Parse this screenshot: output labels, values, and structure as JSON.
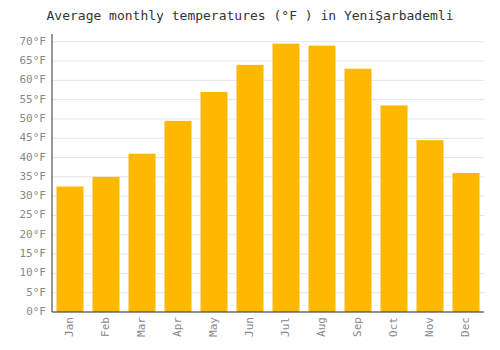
{
  "chart_data": {
    "type": "bar",
    "title": "Average monthly temperatures (°F ) in YeniŞarbademli",
    "categories": [
      "Jan",
      "Feb",
      "Mar",
      "Apr",
      "May",
      "Jun",
      "Jul",
      "Aug",
      "Sep",
      "Oct",
      "Nov",
      "Dec"
    ],
    "values": [
      32.5,
      35.0,
      41.0,
      49.5,
      57.0,
      64.0,
      69.5,
      69.0,
      63.0,
      53.5,
      44.5,
      36.0
    ],
    "color": "#FFB800",
    "ylim": [
      0,
      72
    ],
    "yticks": [
      {
        "value": 0,
        "label": "0°F"
      },
      {
        "value": 5,
        "label": "5°F"
      },
      {
        "value": 10,
        "label": "10°F"
      },
      {
        "value": 15,
        "label": "15°F"
      },
      {
        "value": 20,
        "label": "20°F"
      },
      {
        "value": 25,
        "label": "25°F"
      },
      {
        "value": 30,
        "label": "30°F"
      },
      {
        "value": 35,
        "label": "35°F"
      },
      {
        "value": 40,
        "label": "40°F"
      },
      {
        "value": 45,
        "label": "45°F"
      },
      {
        "value": 50,
        "label": "50°F"
      },
      {
        "value": 55,
        "label": "55°F"
      },
      {
        "value": 60,
        "label": "60°F"
      },
      {
        "value": 65,
        "label": "65°F"
      },
      {
        "value": 70,
        "label": "70°F"
      }
    ],
    "grid": true
  }
}
